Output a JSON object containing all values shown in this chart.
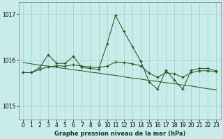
{
  "title": "Graphe pression niveau de la mer (hPa)",
  "bg_color": "#c8ecea",
  "grid_color": "#9ecece",
  "line_color": "#1a5c1a",
  "x_ticks": [
    0,
    1,
    2,
    3,
    4,
    5,
    6,
    7,
    8,
    9,
    10,
    11,
    12,
    13,
    14,
    15,
    16,
    17,
    18,
    19,
    20,
    21,
    22,
    23
  ],
  "y_ticks": [
    1015,
    1016,
    1017
  ],
  "ylim": [
    1014.72,
    1017.25
  ],
  "xlim": [
    -0.5,
    23.5
  ],
  "series1": [
    1015.73,
    1015.73,
    1015.84,
    1016.12,
    1015.93,
    1015.93,
    1016.08,
    1015.84,
    1015.82,
    1015.8,
    1016.35,
    1016.97,
    1016.62,
    1016.3,
    1015.98,
    1015.53,
    1015.37,
    1015.78,
    1015.57,
    1015.37,
    1015.78,
    1015.82,
    1015.82,
    1015.77
  ],
  "series2": [
    1015.73,
    1015.73,
    1015.8,
    1015.85,
    1015.88,
    1015.87,
    1015.9,
    1015.87,
    1015.85,
    1015.84,
    1015.87,
    1015.96,
    1015.95,
    1015.92,
    1015.88,
    1015.72,
    1015.63,
    1015.73,
    1015.7,
    1015.63,
    1015.73,
    1015.77,
    1015.77,
    1015.75
  ],
  "series3": [
    1015.95,
    1015.92,
    1015.89,
    1015.87,
    1015.84,
    1015.82,
    1015.79,
    1015.77,
    1015.74,
    1015.72,
    1015.69,
    1015.67,
    1015.64,
    1015.61,
    1015.59,
    1015.56,
    1015.54,
    1015.51,
    1015.49,
    1015.46,
    1015.44,
    1015.41,
    1015.38,
    1015.36
  ],
  "title_fontsize": 6.0,
  "tick_fontsize": 5.5
}
